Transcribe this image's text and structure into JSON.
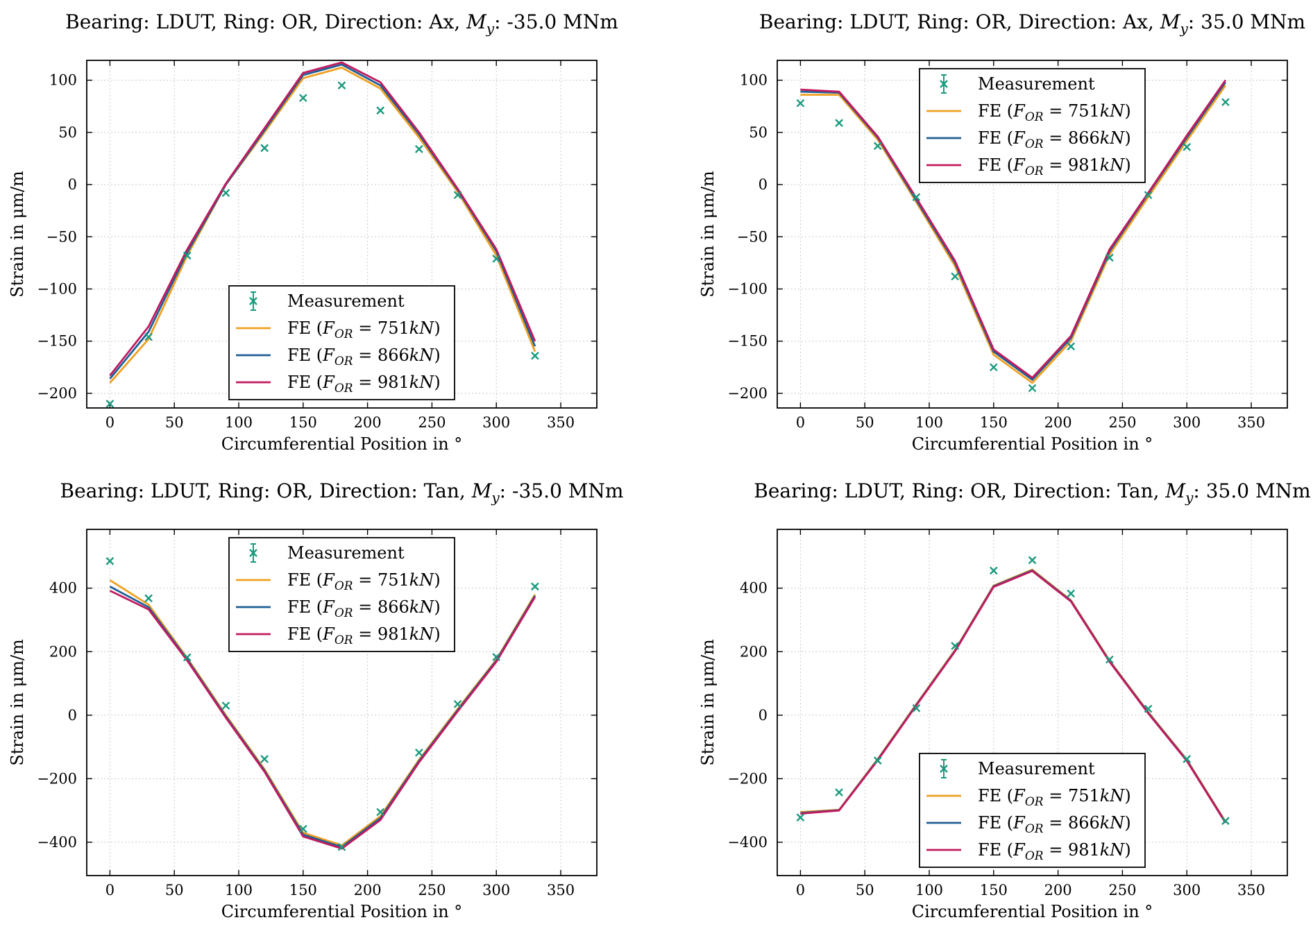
{
  "figure": {
    "legend_entries": [
      "Measurement",
      "FE (F_OR = 751kN)",
      "FE (F_OR = 866kN)",
      "FE (F_OR = 981kN)"
    ],
    "series_colors": {
      "Measurement": "#1a9a7e",
      "FE (F_OR = 751kN)": "#f0a020",
      "FE (F_OR = 866kN)": "#1f5e95",
      "FE (F_OR = 981kN)": "#c21a5f"
    }
  },
  "chart_data": [
    {
      "type": "line",
      "title": "Bearing: LDUT, Ring: OR, Direction: Ax, M_y: -35.0 MNm",
      "title_parts": [
        "Bearing: LDUT, Ring: OR, Direction: Ax, ",
        "M",
        "y",
        ": -35.0 MNm"
      ],
      "xlabel": "Circumferential Position in °",
      "ylabel": "Strain in μm/m",
      "xlim": [
        -18,
        378
      ],
      "ylim": [
        -214,
        119
      ],
      "xticks": [
        0,
        50,
        100,
        150,
        200,
        250,
        300,
        350
      ],
      "yticks": [
        -200,
        -150,
        -100,
        -50,
        0,
        50,
        100
      ],
      "grid": true,
      "legend_loc": "lower-center",
      "x": [
        0,
        30,
        60,
        90,
        120,
        150,
        180,
        210,
        240,
        270,
        300,
        330
      ],
      "series": [
        {
          "name": "Measurement",
          "kind": "marker",
          "values": [
            -210,
            -146,
            -68,
            -8,
            35,
            83,
            95,
            71,
            34,
            -10,
            -71,
            -164
          ]
        },
        {
          "name": "FE (F_OR = 751kN)",
          "kind": "line",
          "values": [
            -190,
            -148,
            -68,
            0,
            50,
            102,
            112,
            92,
            45,
            -7,
            -68,
            -160
          ]
        },
        {
          "name": "FE (F_OR = 866kN)",
          "kind": "line",
          "values": [
            -186,
            -141,
            -65,
            0,
            52,
            105,
            115,
            95,
            48,
            -5,
            -64,
            -155
          ]
        },
        {
          "name": "FE (F_OR = 981kN)",
          "kind": "line",
          "values": [
            -183,
            -136,
            -62,
            1,
            54,
            107,
            117,
            98,
            50,
            -4,
            -62,
            -150
          ]
        }
      ]
    },
    {
      "type": "line",
      "title": "Bearing: LDUT, Ring: OR, Direction: Ax, M_y: 35.0 MNm",
      "title_parts": [
        "Bearing: LDUT, Ring: OR, Direction: Ax, ",
        "M",
        "y",
        ": 35.0 MNm"
      ],
      "xlabel": "Circumferential Position in °",
      "ylabel": "Strain in μm/m",
      "xlim": [
        -18,
        378
      ],
      "ylim": [
        -214,
        119
      ],
      "xticks": [
        0,
        50,
        100,
        150,
        200,
        250,
        300,
        350
      ],
      "yticks": [
        -200,
        -150,
        -100,
        -50,
        0,
        50,
        100
      ],
      "grid": true,
      "legend_loc": "top-center",
      "x": [
        0,
        30,
        60,
        90,
        120,
        150,
        180,
        210,
        240,
        270,
        300,
        330
      ],
      "series": [
        {
          "name": "Measurement",
          "kind": "marker",
          "values": [
            78,
            59,
            37,
            -12,
            -88,
            -175,
            -195,
            -155,
            -70,
            -10,
            36,
            79
          ]
        },
        {
          "name": "FE (F_OR = 751kN)",
          "kind": "line",
          "values": [
            86,
            86,
            43,
            -17,
            -78,
            -163,
            -190,
            -150,
            -67,
            -12,
            42,
            95
          ]
        },
        {
          "name": "FE (F_OR = 866kN)",
          "kind": "line",
          "values": [
            89,
            88,
            45,
            -15,
            -75,
            -160,
            -187,
            -147,
            -64,
            -9,
            45,
            98
          ]
        },
        {
          "name": "FE (F_OR = 981kN)",
          "kind": "line",
          "values": [
            91,
            89,
            46,
            -13,
            -73,
            -158,
            -185,
            -145,
            -62,
            -8,
            47,
            100
          ]
        }
      ]
    },
    {
      "type": "line",
      "title": "Bearing: LDUT, Ring: OR, Direction: Tan, M_y: -35.0 MNm",
      "title_parts": [
        "Bearing: LDUT, Ring: OR, Direction: Tan, ",
        "M",
        "y",
        ": -35.0 MNm"
      ],
      "xlabel": "Circumferential Position in °",
      "ylabel": "Strain in μm/m",
      "xlim": [
        -18,
        378
      ],
      "ylim": [
        -505,
        585
      ],
      "xticks": [
        0,
        50,
        100,
        150,
        200,
        250,
        300,
        350
      ],
      "yticks": [
        -400,
        -200,
        0,
        200,
        400
      ],
      "grid": true,
      "legend_loc": "top-center",
      "x": [
        0,
        30,
        60,
        90,
        120,
        150,
        180,
        210,
        240,
        270,
        300,
        330
      ],
      "series": [
        {
          "name": "Measurement",
          "kind": "marker",
          "values": [
            485,
            368,
            182,
            30,
            -138,
            -358,
            -415,
            -305,
            -118,
            35,
            183,
            405
          ]
        },
        {
          "name": "FE (F_OR = 751kN)",
          "kind": "line",
          "values": [
            425,
            348,
            180,
            0,
            -170,
            -370,
            -410,
            -318,
            -140,
            20,
            175,
            380
          ]
        },
        {
          "name": "FE (F_OR = 866kN)",
          "kind": "line",
          "values": [
            405,
            340,
            176,
            -4,
            -174,
            -376,
            -415,
            -324,
            -144,
            16,
            172,
            376
          ]
        },
        {
          "name": "FE (F_OR = 981kN)",
          "kind": "line",
          "values": [
            392,
            333,
            172,
            -8,
            -178,
            -382,
            -420,
            -330,
            -148,
            12,
            168,
            372
          ]
        }
      ]
    },
    {
      "type": "line",
      "title": "Bearing: LDUT, Ring: OR, Direction: Tan, M_y: 35.0 MNm",
      "title_parts": [
        "Bearing: LDUT, Ring: OR, Direction: Tan, ",
        "M",
        "y",
        ": 35.0 MNm"
      ],
      "xlabel": "Circumferential Position in °",
      "ylabel": "Strain in μm/m",
      "xlim": [
        -18,
        378
      ],
      "ylim": [
        -505,
        585
      ],
      "xticks": [
        0,
        50,
        100,
        150,
        200,
        250,
        300,
        350
      ],
      "yticks": [
        -400,
        -200,
        0,
        200,
        400
      ],
      "grid": true,
      "legend_loc": "bottom-center",
      "x": [
        0,
        30,
        60,
        90,
        120,
        150,
        180,
        210,
        240,
        270,
        300,
        330
      ],
      "series": [
        {
          "name": "Measurement",
          "kind": "marker",
          "values": [
            -322,
            -243,
            -143,
            22,
            218,
            455,
            488,
            383,
            175,
            20,
            -138,
            -333
          ]
        },
        {
          "name": "FE (F_OR = 751kN)",
          "kind": "line",
          "values": [
            -305,
            -298,
            -138,
            35,
            205,
            408,
            458,
            362,
            172,
            10,
            -140,
            -335
          ]
        },
        {
          "name": "FE (F_OR = 866kN)",
          "kind": "line",
          "values": [
            -308,
            -299,
            -140,
            33,
            203,
            406,
            456,
            360,
            170,
            8,
            -142,
            -337
          ]
        },
        {
          "name": "FE (F_OR = 981kN)",
          "kind": "line",
          "values": [
            -310,
            -300,
            -142,
            31,
            201,
            404,
            454,
            358,
            168,
            6,
            -144,
            -339
          ]
        }
      ]
    }
  ]
}
